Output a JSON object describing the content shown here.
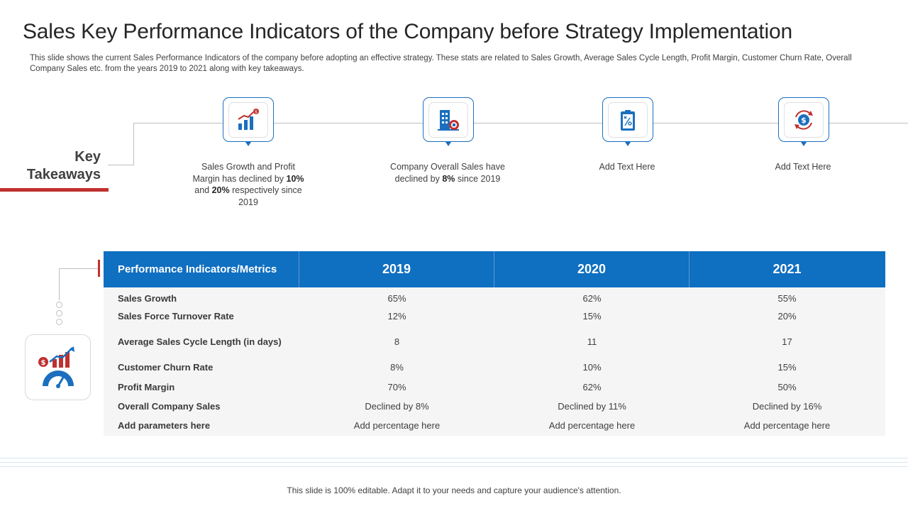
{
  "title": "Sales Key Performance Indicators of the Company before Strategy Implementation",
  "subtitle": "This slide shows the current Sales Performance Indicators of the company before adopting an effective strategy. These stats are related to Sales Growth, Average Sales Cycle Length, Profit Margin, Customer Churn Rate, Overall Company Sales etc. from the years 2019 to 2021 along with key takeaways.",
  "key_takeaways": {
    "label_line1": "Key",
    "label_line2": "Takeaways",
    "items": [
      {
        "icon": "bar-chart-growth-icon",
        "text_a": "Sales Growth and Profit Margin has declined by ",
        "bold_a": "10%",
        "text_b": " and ",
        "bold_b": "20%",
        "text_c": " respectively since 2019"
      },
      {
        "icon": "company-building-icon",
        "text_a": "Company Overall Sales have declined by ",
        "bold_a": "8%",
        "text_c": " since 2019"
      },
      {
        "icon": "strategy-clipboard-icon",
        "text_a": "Add Text Here"
      },
      {
        "icon": "dollar-cycle-icon",
        "text_a": "Add Text Here"
      }
    ]
  },
  "table": {
    "headers": [
      "Performance Indicators/Metrics",
      "2019",
      "2020",
      "2021"
    ],
    "rows": [
      [
        "Sales Growth",
        "65%",
        "62%",
        "55%"
      ],
      [
        "Sales Force Turnover Rate",
        "12%",
        "15%",
        "20%"
      ],
      [
        "Average Sales Cycle Length (in days)",
        "8",
        "11",
        "17"
      ],
      [
        "Customer Churn Rate",
        "8%",
        "10%",
        "15%"
      ],
      [
        "Profit Margin",
        "70%",
        "62%",
        "50%"
      ],
      [
        "Overall Company Sales",
        "Declined by 8%",
        "Declined by 11%",
        "Declined by 16%"
      ],
      [
        "Add parameters here",
        "Add percentage  here",
        "Add percentage  here",
        "Add percentage  here"
      ]
    ]
  },
  "side_icon": "sales-performance-gauge-icon",
  "footer": "This slide is 100% editable. Adapt it to your needs and capture your audience's attention.",
  "colors": {
    "accent_blue": "#0f6fc1",
    "accent_red": "#c0302f",
    "table_body": "#f5f5f5"
  }
}
